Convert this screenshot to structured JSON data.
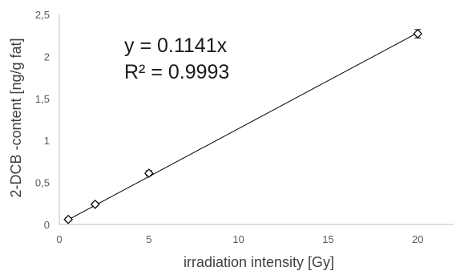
{
  "chart_data": {
    "type": "scatter",
    "title": "",
    "xlabel": "irradiation intensity [Gy]",
    "ylabel": "2-DCB -content [ng/g fat]",
    "xlim": [
      0,
      22
    ],
    "ylim": [
      0,
      2.5
    ],
    "x_ticks": [
      0,
      5,
      10,
      15,
      20
    ],
    "y_ticks": [
      0,
      0.5,
      1,
      1.5,
      2,
      2.5
    ],
    "x_tick_labels": [
      "0",
      "5",
      "10",
      "15",
      "20"
    ],
    "y_tick_labels": [
      "0",
      "0,5",
      "1",
      "1,5",
      "2",
      "2,5"
    ],
    "grid": false,
    "legend": "none",
    "marker": "diamond-open",
    "points": [
      {
        "x": 0.5,
        "y": 0.06,
        "err": 0.02
      },
      {
        "x": 2,
        "y": 0.24,
        "err": 0.02
      },
      {
        "x": 5,
        "y": 0.61,
        "err": 0.03
      },
      {
        "x": 20,
        "y": 2.27,
        "err": 0.05
      }
    ],
    "trendline": {
      "type": "linear",
      "slope": 0.1141,
      "intercept": 0,
      "x_range": [
        0.5,
        20
      ]
    },
    "annotations": {
      "equation": "y = 0.1141x",
      "r_squared": "R² = 0.9993"
    },
    "colors": {
      "marker": "#000000",
      "line": "#000000",
      "axis": "#bfbfbf",
      "text": "#595959"
    }
  }
}
